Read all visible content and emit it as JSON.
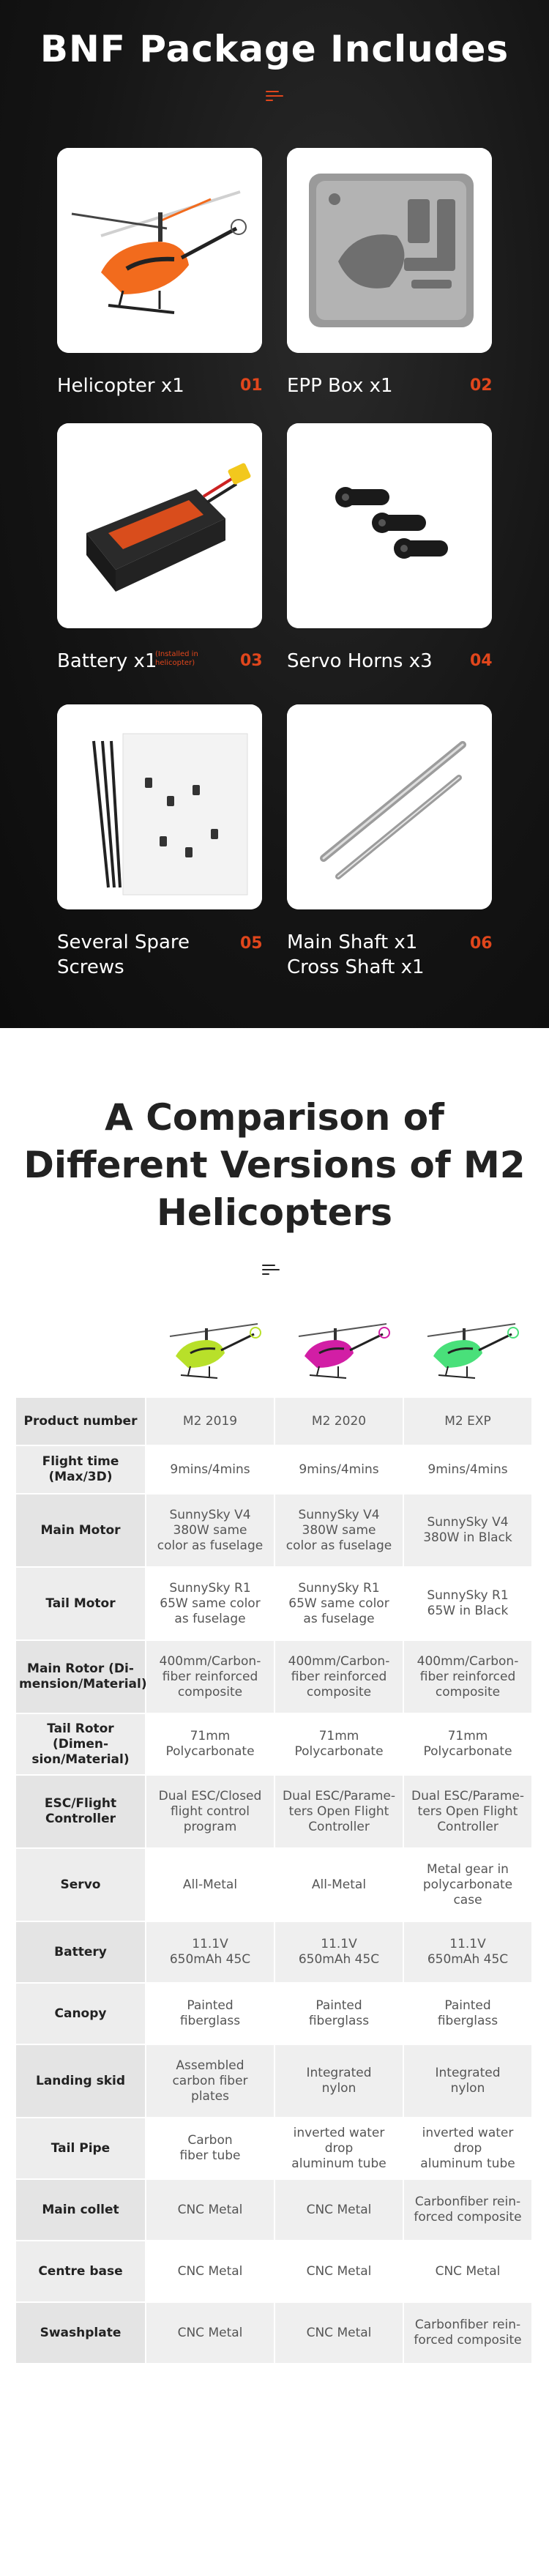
{
  "package": {
    "title": "BNF Package Includes",
    "items": [
      {
        "label": "Helicopter x1",
        "num": "01"
      },
      {
        "label": "EPP Box x1",
        "num": "02"
      },
      {
        "label": "Battery x1",
        "num": "03",
        "note": "(Installed in\nhelicopter)"
      },
      {
        "label": "Servo Horns x3",
        "num": "04"
      },
      {
        "label": "Several Spare\nScrews",
        "num": "05"
      },
      {
        "label": "Main Shaft x1\nCross Shaft x1",
        "num": "06"
      }
    ]
  },
  "comparison": {
    "title": "A Comparison of\nDifferent Versions of M2\nHelicopters",
    "models": [
      {
        "color": "#b8e02a"
      },
      {
        "color": "#d21ea5"
      },
      {
        "color": "#49e07a"
      }
    ],
    "rows": [
      {
        "label": "Product number",
        "values": [
          "M2 2019",
          "M2 2020",
          "M2 EXP"
        ]
      },
      {
        "label": "Flight time\n(Max/3D)",
        "values": [
          "9mins/4mins",
          "9mins/4mins",
          "9mins/4mins"
        ]
      },
      {
        "label": "Main Motor",
        "values": [
          "SunnySky V4\n380W same\ncolor as fuselage",
          "SunnySky V4\n380W same\ncolor as fuselage",
          "SunnySky V4\n380W in Black"
        ]
      },
      {
        "label": "Tail Motor",
        "values": [
          "SunnySky R1\n65W same color\nas fuselage",
          "SunnySky R1\n65W same color\nas fuselage",
          "SunnySky R1\n65W in Black"
        ]
      },
      {
        "label": "Main Rotor (Di-\nmension/Material)",
        "values": [
          "400mm/Carbon-\nfiber reinforced\ncomposite",
          "400mm/Carbon-\nfiber reinforced\ncomposite",
          "400mm/Carbon-\nfiber reinforced\ncomposite"
        ]
      },
      {
        "label": "Tail Rotor (Dimen-\nsion/Material)",
        "values": [
          "71mm\nPolycarbonate",
          "71mm\nPolycarbonate",
          "71mm\nPolycarbonate"
        ]
      },
      {
        "label": "ESC/Flight\nController",
        "values": [
          "Dual ESC/Closed\nflight control\nprogram",
          "Dual ESC/Parame-\nters Open Flight\nController",
          "Dual ESC/Parame-\nters Open Flight\nController"
        ]
      },
      {
        "label": "Servo",
        "values": [
          "All-Metal",
          "All-Metal",
          "Metal gear in\npolycarbonate\ncase"
        ]
      },
      {
        "label": "Battery",
        "values": [
          "11.1V\n650mAh 45C",
          "11.1V\n650mAh 45C",
          "11.1V\n650mAh 45C"
        ]
      },
      {
        "label": "Canopy",
        "values": [
          "Painted\nfiberglass",
          "Painted\nfiberglass",
          "Painted\nfiberglass"
        ]
      },
      {
        "label": "Landing skid",
        "values": [
          "Assembled\ncarbon fiber\nplates",
          "Integrated\nnylon",
          "Integrated\nnylon"
        ]
      },
      {
        "label": "Tail Pipe",
        "values": [
          "Carbon\nfiber tube",
          "inverted water drop\naluminum tube",
          "inverted water drop\naluminum tube"
        ]
      },
      {
        "label": "Main collet",
        "values": [
          "CNC Metal",
          "CNC Metal",
          "Carbonfiber rein-\nforced composite"
        ]
      },
      {
        "label": "Centre base",
        "values": [
          "CNC Metal",
          "CNC Metal",
          "CNC Metal"
        ]
      },
      {
        "label": "Swashplate",
        "values": [
          "CNC Metal",
          "CNC Metal",
          "Carbonfiber rein-\nforced composite"
        ]
      }
    ]
  }
}
